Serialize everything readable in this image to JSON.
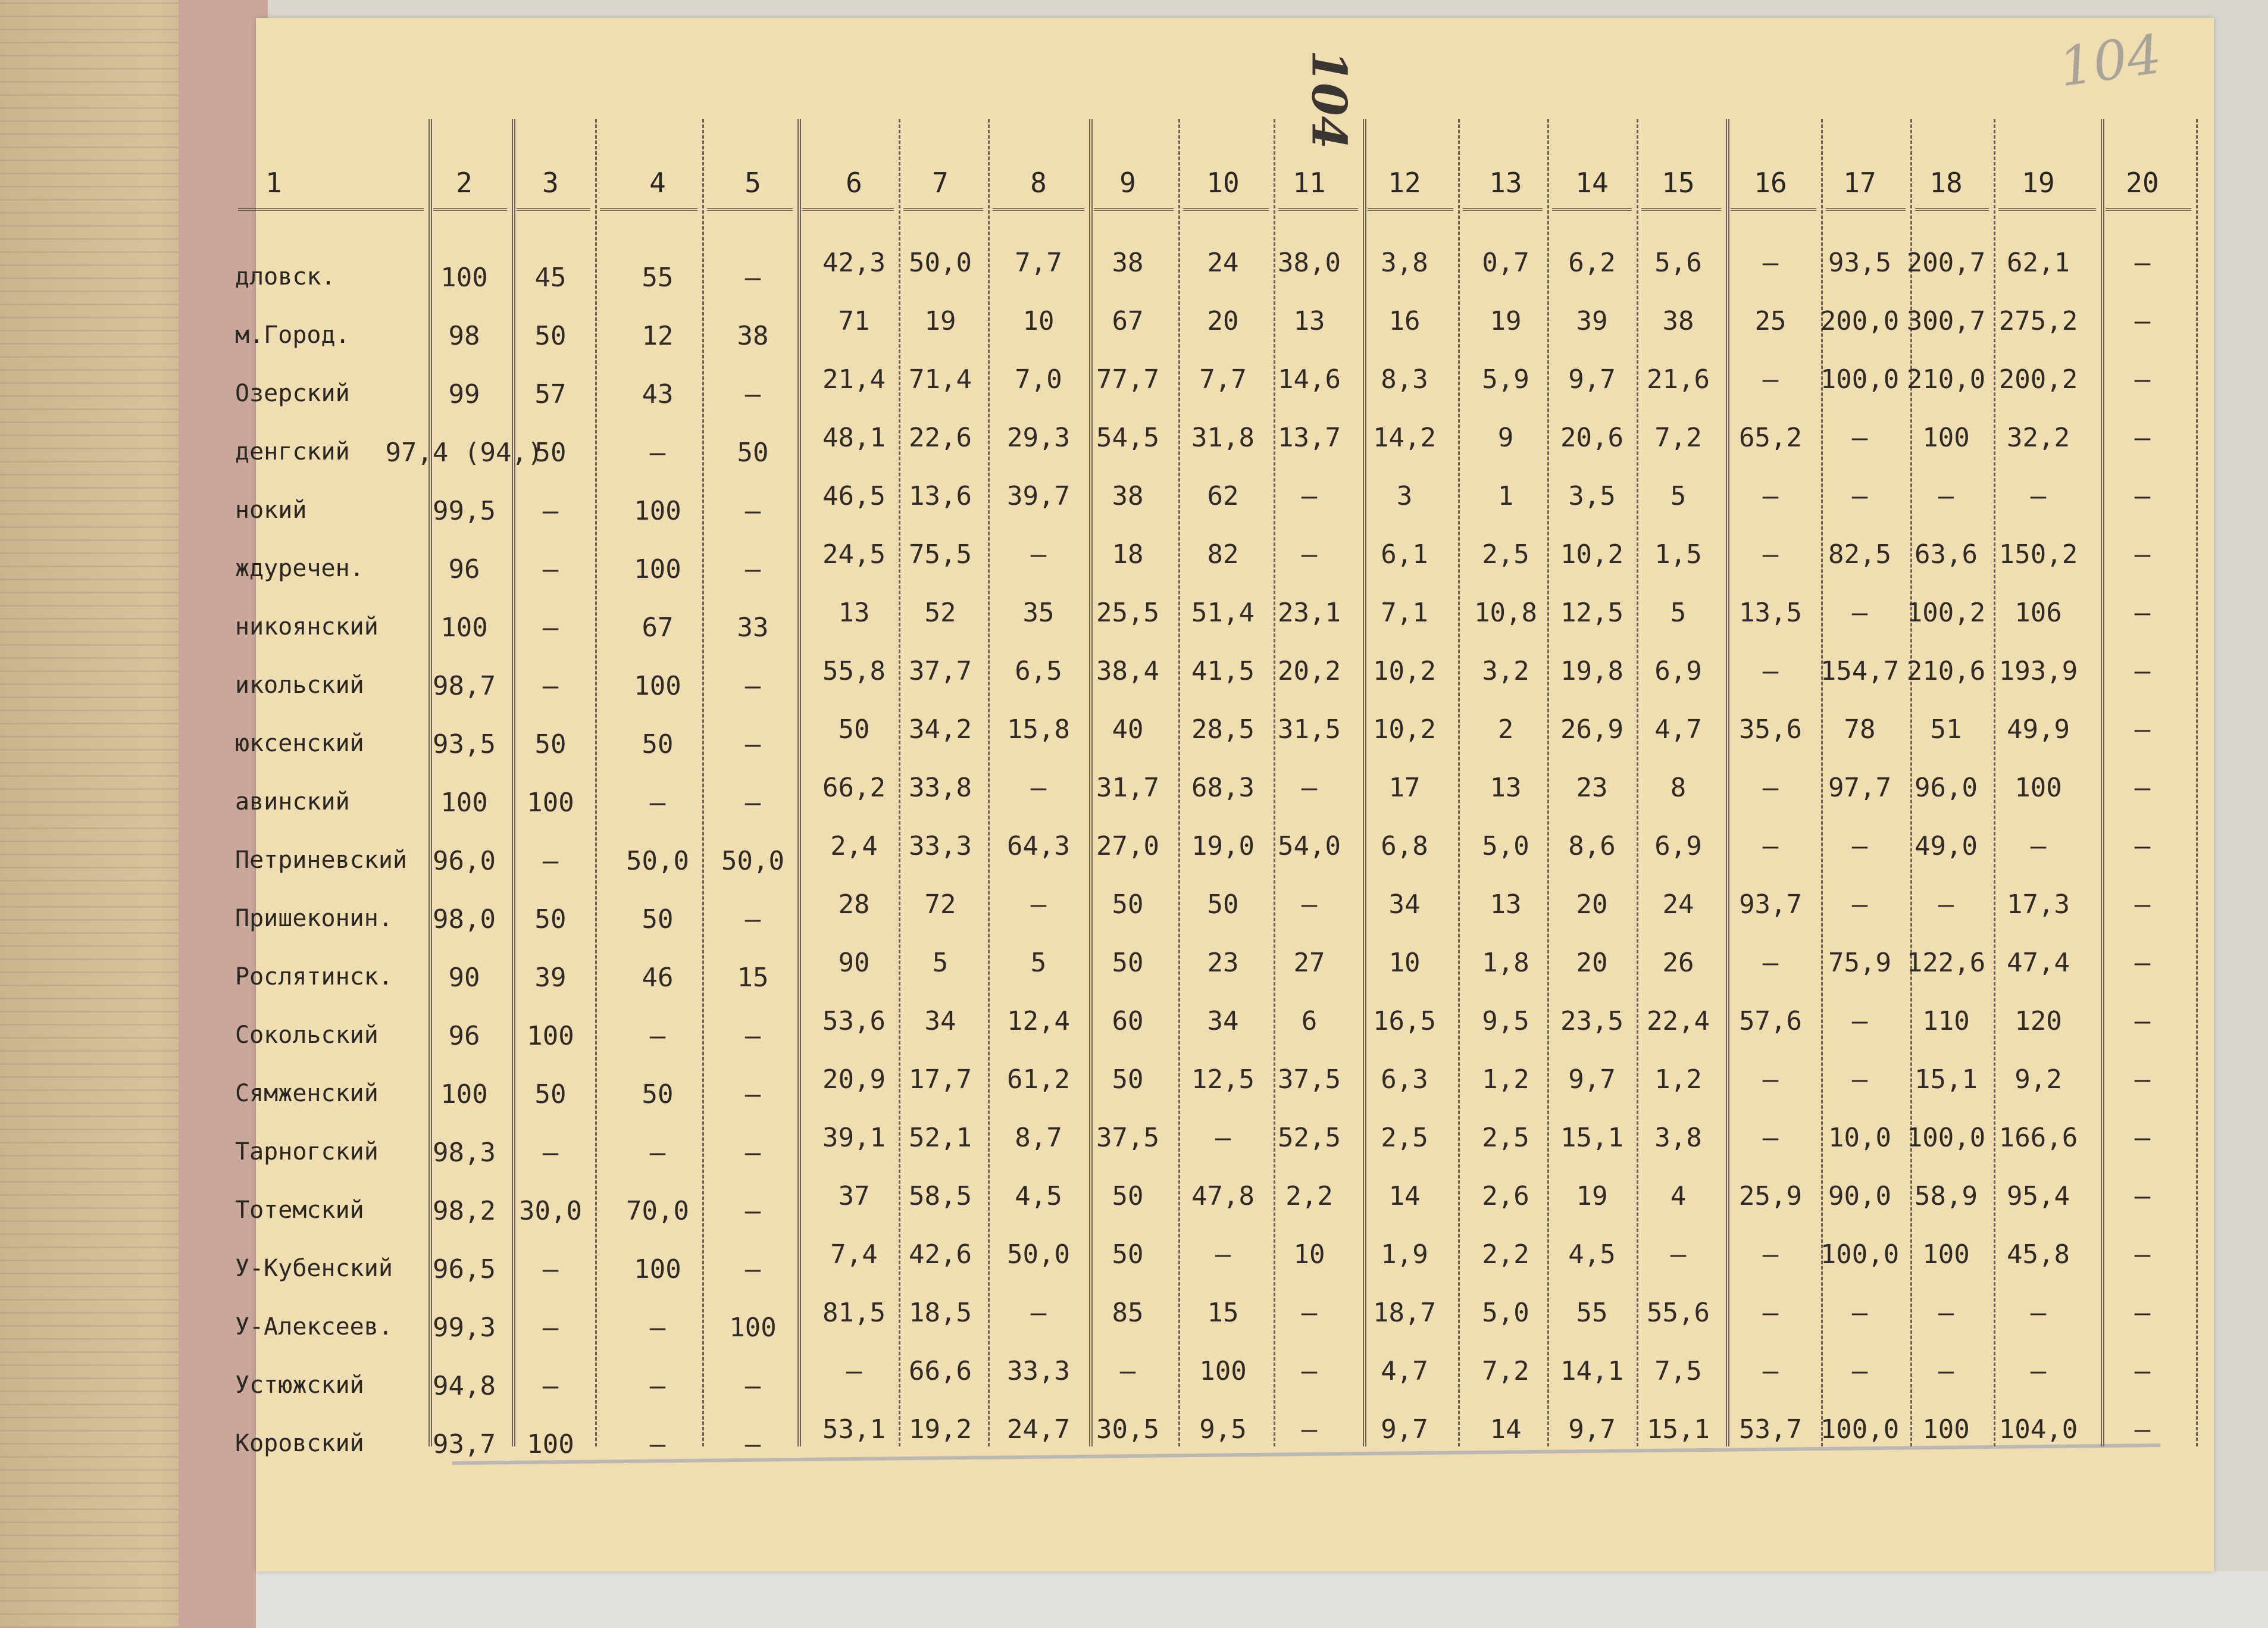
{
  "page_number_stamp": "104",
  "page_number_pencil": "104",
  "table": {
    "column_headers": [
      "1",
      "2",
      "3",
      "4",
      "5",
      "6",
      "7",
      "8",
      "9",
      "10",
      "11",
      "12",
      "13",
      "14",
      "15",
      "16",
      "17",
      "18",
      "19",
      "20"
    ],
    "rows": [
      {
        "name": "дловск.",
        "cells": [
          "100",
          "45",
          "55",
          "–",
          "42,3",
          "50,0",
          "7,7",
          "38",
          "24",
          "38,0",
          "3,8",
          "0,7",
          "6,2",
          "5,6",
          "–",
          "93,5",
          "200,7",
          "62,1",
          "–"
        ]
      },
      {
        "name": "м.Город.",
        "cells": [
          "98",
          "50",
          "12",
          "38",
          "71",
          "19",
          "10",
          "67",
          "20",
          "13",
          "16",
          "19",
          "39",
          "38",
          "25",
          "200,0",
          "300,7",
          "275,2",
          "–"
        ]
      },
      {
        "name": "Озерский",
        "cells": [
          "99",
          "57",
          "43",
          "–",
          "21,4",
          "71,4",
          "7,0",
          "77,7",
          "7,7",
          "14,6",
          "8,3",
          "5,9",
          "9,7",
          "21,6",
          "–",
          "100,0",
          "210,0",
          "200,2",
          "–"
        ]
      },
      {
        "name": "денгский",
        "cells": [
          "97,4 (94,)",
          "50",
          "–",
          "50",
          "48,1",
          "22,6",
          "29,3",
          "54,5",
          "31,8",
          "13,7",
          "14,2",
          "9",
          "20,6",
          "7,2",
          "65,2",
          "–",
          "100",
          "32,2",
          "–"
        ]
      },
      {
        "name": "нокий",
        "cells": [
          "99,5",
          "–",
          "100",
          "–",
          "46,5",
          "13,6",
          "39,7",
          "38",
          "62",
          "–",
          "3",
          "1",
          "3,5",
          "5",
          "–",
          "–",
          "–",
          "–",
          "–"
        ]
      },
      {
        "name": "ждуречен.",
        "cells": [
          "96",
          "–",
          "100",
          "–",
          "24,5",
          "75,5",
          "–",
          "18",
          "82",
          "–",
          "6,1",
          "2,5",
          "10,2",
          "1,5",
          "–",
          "82,5",
          "63,6",
          "150,2",
          "–"
        ]
      },
      {
        "name": "никоянский",
        "cells": [
          "100",
          "–",
          "67",
          "33",
          "13",
          "52",
          "35",
          "25,5",
          "51,4",
          "23,1",
          "7,1",
          "10,8",
          "12,5",
          "5",
          "13,5",
          "–",
          "100,2",
          "106",
          "–"
        ]
      },
      {
        "name": "икольский",
        "cells": [
          "98,7",
          "–",
          "100",
          "–",
          "55,8",
          "37,7",
          "6,5",
          "38,4",
          "41,5",
          "20,2",
          "10,2",
          "3,2",
          "19,8",
          "6,9",
          "–",
          "154,7",
          "210,6",
          "193,9",
          "–"
        ]
      },
      {
        "name": "юксенский",
        "cells": [
          "93,5",
          "50",
          "50",
          "–",
          "50",
          "34,2",
          "15,8",
          "40",
          "28,5",
          "31,5",
          "10,2",
          "2",
          "26,9",
          "4,7",
          "35,6",
          "78",
          "51",
          "49,9",
          "–"
        ]
      },
      {
        "name": "авинский",
        "cells": [
          "100",
          "100",
          "–",
          "–",
          "66,2",
          "33,8",
          "–",
          "31,7",
          "68,3",
          "–",
          "17",
          "13",
          "23",
          "8",
          "–",
          "97,7",
          "96,0",
          "100",
          "–"
        ]
      },
      {
        "name": "Петриневский",
        "cells": [
          "96,0",
          "–",
          "50,0",
          "50,0",
          "2,4",
          "33,3",
          "64,3",
          "27,0",
          "19,0",
          "54,0",
          "6,8",
          "5,0",
          "8,6",
          "6,9",
          "–",
          "–",
          "49,0",
          "–",
          "–"
        ]
      },
      {
        "name": "Пришеконин.",
        "cells": [
          "98,0",
          "50",
          "50",
          "–",
          "28",
          "72",
          "–",
          "50",
          "50",
          "–",
          "34",
          "13",
          "20",
          "24",
          "93,7",
          "–",
          "–",
          "17,3",
          "–"
        ]
      },
      {
        "name": "Рослятинск.",
        "cells": [
          "90",
          "39",
          "46",
          "15",
          "90",
          "5",
          "5",
          "50",
          "23",
          "27",
          "10",
          "1,8",
          "20",
          "26",
          "–",
          "75,9",
          "122,6",
          "47,4",
          "–"
        ]
      },
      {
        "name": "Сокольский",
        "cells": [
          "96",
          "100",
          "–",
          "–",
          "53,6",
          "34",
          "12,4",
          "60",
          "34",
          "6",
          "16,5",
          "9,5",
          "23,5",
          "22,4",
          "57,6",
          "–",
          "110",
          "120",
          "–"
        ]
      },
      {
        "name": "Сямженский",
        "cells": [
          "100",
          "50",
          "50",
          "–",
          "20,9",
          "17,7",
          "61,2",
          "50",
          "12,5",
          "37,5",
          "6,3",
          "1,2",
          "9,7",
          "1,2",
          "–",
          "–",
          "15,1",
          "9,2",
          "–"
        ]
      },
      {
        "name": "Тарногский",
        "cells": [
          "98,3",
          "–",
          "–",
          "–",
          "39,1",
          "52,1",
          "8,7",
          "37,5",
          "–",
          "52,5",
          "2,5",
          "2,5",
          "15,1",
          "3,8",
          "–",
          "10,0",
          "100,0",
          "166,6",
          "–"
        ]
      },
      {
        "name": "Тотемский",
        "cells": [
          "98,2",
          "30,0",
          "70,0",
          "–",
          "37",
          "58,5",
          "4,5",
          "50",
          "47,8",
          "2,2",
          "14",
          "2,6",
          "19",
          "4",
          "25,9",
          "90,0",
          "58,9",
          "95,4",
          "–"
        ]
      },
      {
        "name": "У-Кубенский",
        "cells": [
          "96,5",
          "–",
          "100",
          "–",
          "7,4",
          "42,6",
          "50,0",
          "50",
          "–",
          "10",
          "1,9",
          "2,2",
          "4,5",
          "–",
          "–",
          "100,0",
          "100",
          "45,8",
          "–"
        ]
      },
      {
        "name": "У-Алексеев.",
        "cells": [
          "99,3",
          "–",
          "–",
          "100",
          "81,5",
          "18,5",
          "–",
          "85",
          "15",
          "–",
          "18,7",
          "5,0",
          "55",
          "55,6",
          "–",
          "–",
          "–",
          "–",
          "–"
        ]
      },
      {
        "name": "Устюжский",
        "cells": [
          "94,8",
          "–",
          "–",
          "–",
          "–",
          "66,6",
          "33,3",
          "–",
          "100",
          "–",
          "4,7",
          "7,2",
          "14,1",
          "7,5",
          "–",
          "–",
          "–",
          "–",
          "–"
        ]
      },
      {
        "name": "Коровский",
        "cells": [
          "93,7",
          "100",
          "–",
          "–",
          "53,1",
          "19,2",
          "24,7",
          "30,5",
          "9,5",
          "–",
          "9,7",
          "14",
          "9,7",
          "15,1",
          "53,7",
          "100,0",
          "100",
          "104,0",
          "–"
        ]
      }
    ]
  }
}
